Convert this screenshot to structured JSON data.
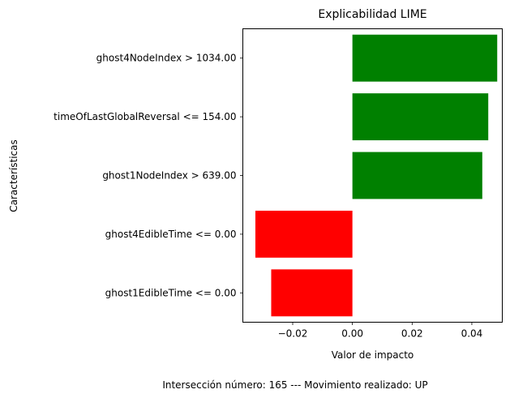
{
  "chart_data": {
    "type": "bar",
    "orientation": "horizontal",
    "title": "Explicabilidad LIME",
    "xlabel": "Valor de impacto",
    "ylabel": "Características",
    "categories": [
      "ghost4NodeIndex > 1034.00",
      "timeOfLastGlobalReversal <= 154.00",
      "ghost1NodeIndex > 639.00",
      "ghost4EdibleTime <= 0.00",
      "ghost1EdibleTime <= 0.00"
    ],
    "values": [
      0.0485,
      0.0455,
      0.0435,
      -0.0325,
      -0.0272
    ],
    "bar_colors": [
      "#008000",
      "#008000",
      "#008000",
      "#ff0000",
      "#ff0000"
    ],
    "xlim": [
      -0.0367,
      0.0502
    ],
    "xticks": [
      -0.02,
      0.0,
      0.02,
      0.04
    ],
    "xtick_labels": [
      "−0.02",
      "0.00",
      "0.02",
      "0.04"
    ],
    "grid": false,
    "legend": "none"
  },
  "footer": "Intersección número: 165 --- Movimiento realizado: UP"
}
